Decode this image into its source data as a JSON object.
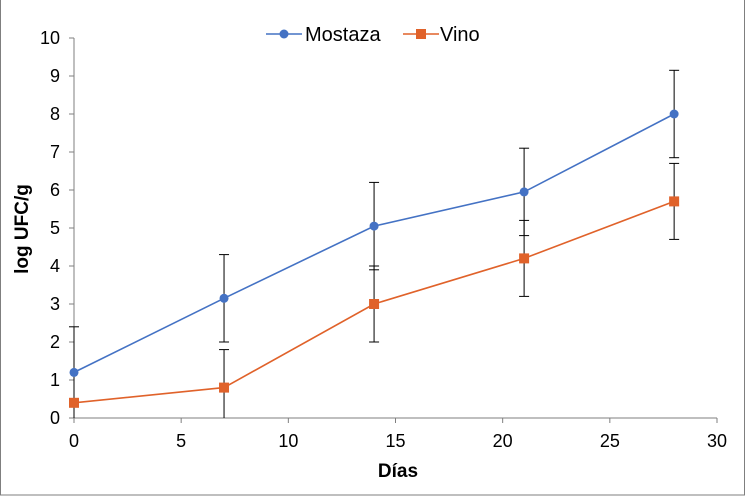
{
  "chart_data": {
    "type": "line",
    "title": "",
    "xlabel": "Días",
    "ylabel": "log UFC/g",
    "xlim": [
      0,
      30
    ],
    "ylim": [
      0,
      10
    ],
    "xticks": [
      0,
      5,
      10,
      15,
      20,
      25,
      30
    ],
    "yticks": [
      0,
      1,
      2,
      3,
      4,
      5,
      6,
      7,
      8,
      9,
      10
    ],
    "grid": false,
    "legend_position": "top-center",
    "series": [
      {
        "name": "Mostaza",
        "marker": "circle",
        "color": "#4472C4",
        "x": [
          0,
          7,
          14,
          21,
          28
        ],
        "y": [
          1.2,
          3.15,
          5.05,
          5.95,
          8.0
        ],
        "error": [
          1.2,
          1.15,
          1.15,
          1.15,
          1.15
        ]
      },
      {
        "name": "Vino",
        "marker": "square",
        "color": "#E0622A",
        "x": [
          0,
          7,
          14,
          21,
          28
        ],
        "y": [
          0.4,
          0.8,
          3.0,
          4.2,
          5.7
        ],
        "error": [
          0.0,
          1.0,
          1.0,
          1.0,
          1.0
        ]
      }
    ]
  }
}
